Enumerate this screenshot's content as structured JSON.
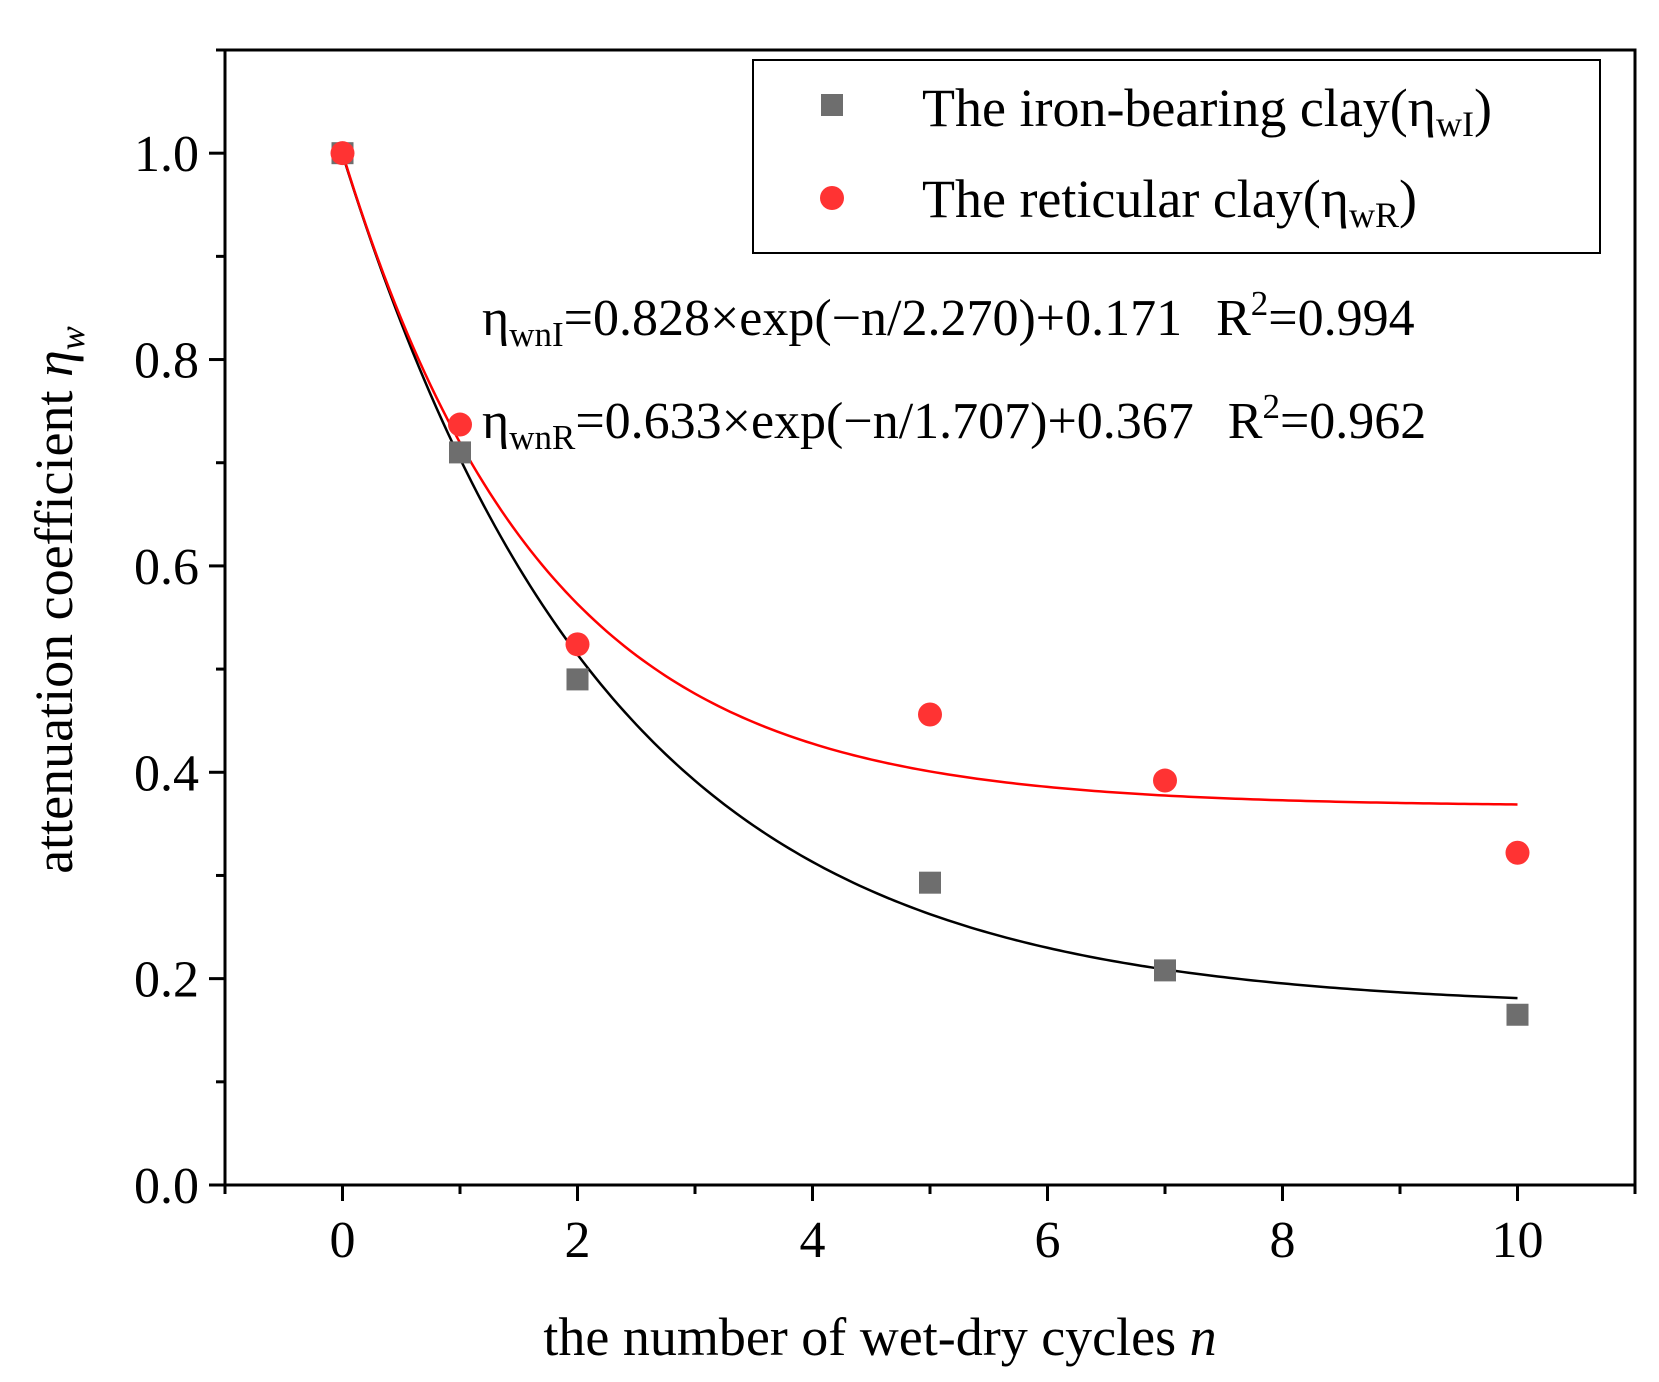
{
  "chart_data": {
    "type": "scatter",
    "xlabel": "the number of wet-dry cycles",
    "xlabel_var": "n",
    "ylabel": "attenuation coefficient",
    "ylabel_var": "η",
    "ylabel_sub": "w",
    "xlim": [
      -1,
      11
    ],
    "ylim": [
      0.0,
      1.1
    ],
    "xticks": [
      0,
      2,
      4,
      6,
      8,
      10
    ],
    "xtick_labels": [
      "0",
      "2",
      "4",
      "6",
      "8",
      "10"
    ],
    "yticks": [
      0.0,
      0.2,
      0.4,
      0.6,
      0.8,
      1.0
    ],
    "ytick_labels": [
      "0.0",
      "0.2",
      "0.4",
      "0.6",
      "0.8",
      "1.0"
    ],
    "grid": false,
    "legend_position": "top-right",
    "series": [
      {
        "name": "The iron-bearing clay",
        "legend_prefix": "The iron-bearing clay(η",
        "legend_sub": "wI",
        "legend_suffix": ")",
        "marker": "square",
        "color": "#6e6e6e",
        "x": [
          0,
          1,
          2,
          5,
          7,
          10
        ],
        "y": [
          1.0,
          0.71,
          0.49,
          0.293,
          0.208,
          0.165
        ],
        "fit": {
          "a": 0.828,
          "t": 2.27,
          "c": 0.171,
          "color": "#000000"
        },
        "equation": {
          "lhs_symbol": "η",
          "lhs_sub": "wnI",
          "rhs": "=0.828×exp(−n/2.270)+0.171",
          "r_label": "R",
          "r_sup": "2",
          "r_value": "=0.994"
        }
      },
      {
        "name": "The reticular clay",
        "legend_prefix": "The reticular clay(η",
        "legend_sub": "wR",
        "legend_suffix": ")",
        "marker": "circle",
        "color": "#ff3333",
        "x": [
          0,
          1,
          2,
          5,
          7,
          10
        ],
        "y": [
          1.0,
          0.737,
          0.524,
          0.456,
          0.392,
          0.322
        ],
        "fit": {
          "a": 0.633,
          "t": 1.707,
          "c": 0.367,
          "color": "#ff0000"
        },
        "equation": {
          "lhs_symbol": "η",
          "lhs_sub": "wnR",
          "rhs": "=0.633×exp(−n/1.707)+0.367",
          "r_label": "R",
          "r_sup": "2",
          "r_value": "=0.962"
        }
      }
    ]
  }
}
